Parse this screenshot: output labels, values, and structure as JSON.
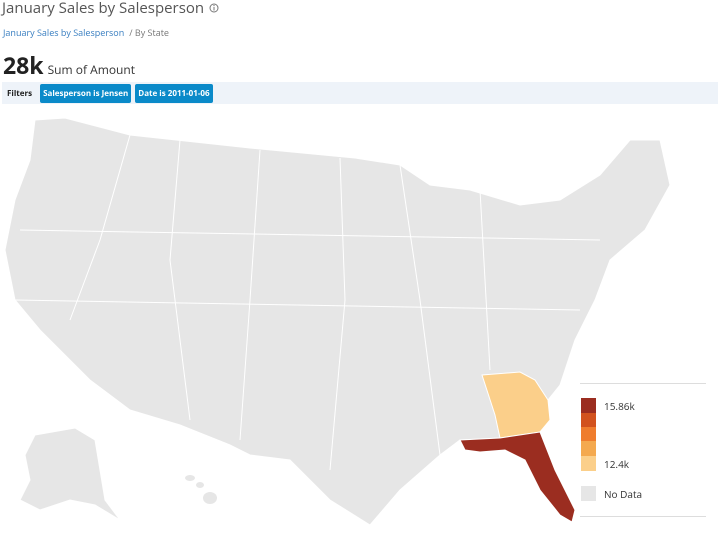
{
  "header": {
    "title": "January Sales by Salesperson",
    "breadcrumb": [
      "January Sales by Salesperson",
      "/ By State"
    ]
  },
  "kpi": {
    "value": "28k",
    "label": "Sum of Amount"
  },
  "filters": {
    "label": "Filters",
    "chips": [
      "Salesperson is Jensen",
      "Date is 2011-01-06"
    ]
  },
  "legend": {
    "max": "15.86k",
    "min": "12.4k",
    "no_data": "No Data"
  }
}
